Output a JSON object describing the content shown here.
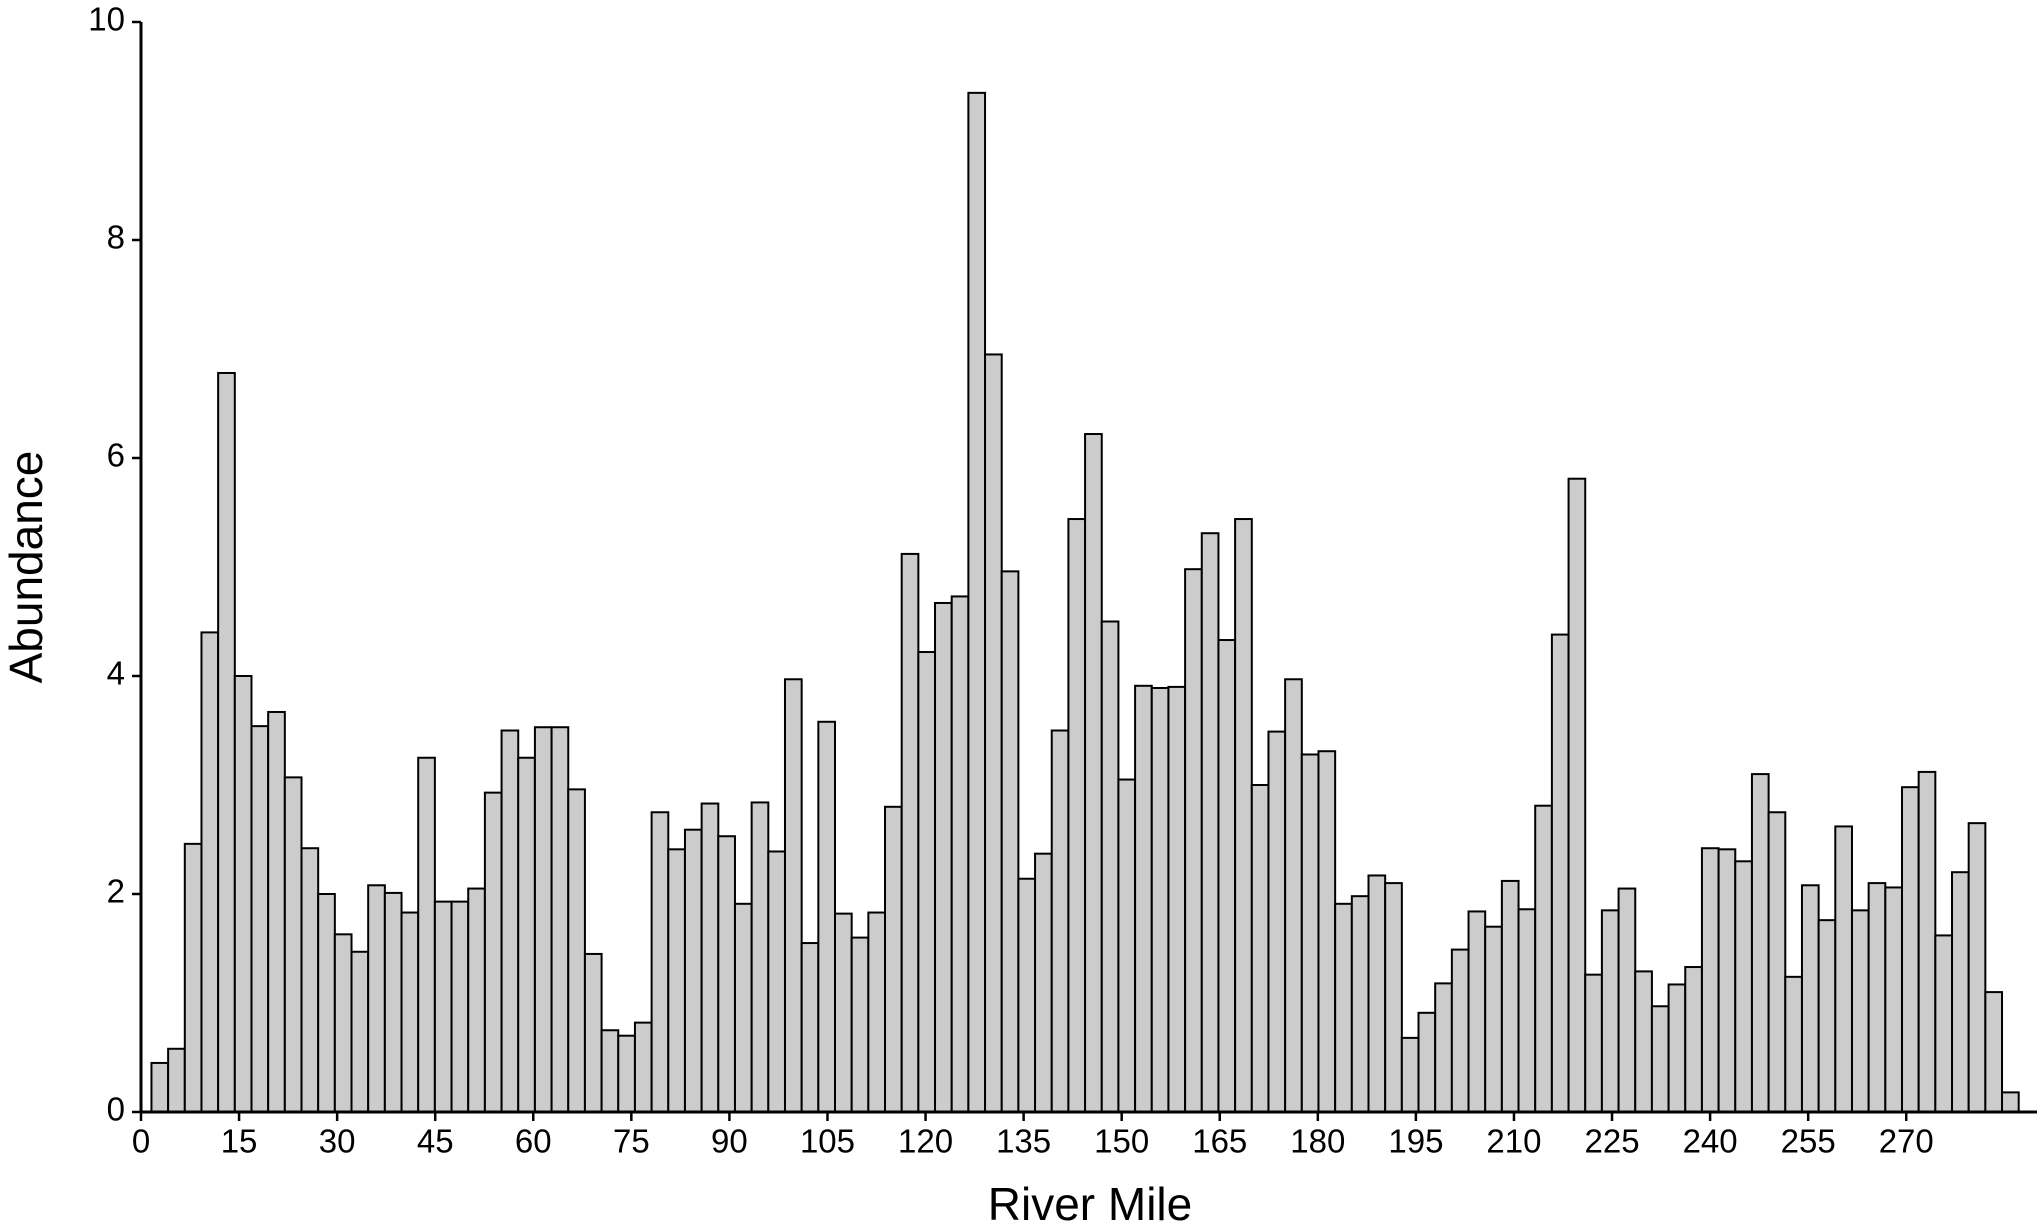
{
  "chart_data": {
    "type": "histogram",
    "xlabel": "River Mile",
    "ylabel": "Abundance",
    "bins": [
      1.6,
      4.15,
      6.7,
      9.25,
      11.8,
      14.35,
      16.9,
      19.45,
      22.0,
      24.55,
      27.1,
      29.65,
      32.2,
      34.75,
      37.3,
      39.85,
      42.4,
      44.95,
      47.5,
      50.05,
      52.6,
      55.15,
      57.7,
      60.25,
      62.8,
      65.35,
      67.9,
      70.45,
      73.0,
      75.55,
      78.1,
      80.65,
      83.2,
      85.75,
      88.3,
      90.85,
      93.4,
      95.95,
      98.5,
      101.05,
      103.6,
      106.15,
      108.7,
      111.25,
      113.8,
      116.35,
      118.9,
      121.45,
      124.0,
      126.55,
      129.1,
      131.65,
      134.2,
      136.75,
      139.3,
      141.85,
      144.4,
      146.95,
      149.5,
      152.05,
      154.6,
      157.15,
      159.7,
      162.25,
      164.8,
      167.35,
      169.9,
      172.45,
      175.0,
      177.55,
      180.1,
      182.65,
      185.2,
      187.75,
      190.3,
      192.85,
      195.4,
      197.95,
      200.5,
      203.05,
      205.6,
      208.15,
      210.7,
      213.25,
      215.8,
      218.35,
      220.9,
      223.45,
      226.0,
      228.55,
      231.1,
      233.65,
      236.2,
      238.75,
      241.3,
      243.85,
      246.4,
      248.95,
      251.5,
      254.05,
      256.6,
      259.15,
      261.7,
      264.25,
      266.8,
      269.35,
      271.9,
      274.45,
      277.0,
      279.55,
      282.1,
      284.65,
      287.2
    ],
    "values": [
      0.45,
      0.58,
      2.46,
      4.4,
      6.78,
      4.0,
      3.54,
      3.67,
      3.07,
      2.42,
      2.0,
      1.63,
      1.47,
      2.08,
      2.01,
      1.83,
      3.25,
      1.93,
      1.93,
      2.05,
      2.93,
      3.5,
      3.25,
      3.53,
      3.53,
      2.96,
      1.45,
      0.75,
      0.7,
      0.82,
      2.75,
      2.41,
      2.59,
      2.83,
      2.53,
      1.91,
      2.84,
      2.39,
      3.97,
      1.55,
      3.58,
      1.82,
      1.6,
      1.83,
      2.8,
      5.12,
      4.22,
      4.67,
      4.73,
      9.35,
      6.95,
      4.96,
      2.14,
      2.37,
      3.5,
      5.44,
      6.22,
      4.5,
      3.05,
      3.91,
      3.89,
      3.9,
      4.98,
      5.31,
      4.33,
      5.44,
      3.0,
      3.49,
      3.97,
      3.28,
      3.31,
      1.91,
      1.98,
      2.17,
      2.1,
      0.68,
      0.91,
      1.18,
      1.49,
      1.84,
      1.7,
      2.12,
      1.86,
      2.81,
      4.38,
      5.81,
      1.26,
      1.85,
      2.05,
      1.29,
      0.97,
      1.17,
      1.33,
      2.42,
      2.41,
      2.3,
      3.1,
      2.75,
      1.24,
      2.08,
      1.76,
      2.62,
      1.85,
      2.1,
      2.06,
      2.98,
      3.12,
      1.62,
      2.2,
      2.65,
      1.1,
      0.18
    ],
    "color": "#cccccc",
    "xlim": [
      0,
      290
    ],
    "xticks": [
      0,
      15,
      30,
      45,
      60,
      75,
      90,
      105,
      120,
      135,
      150,
      165,
      180,
      195,
      210,
      225,
      240,
      255,
      270
    ],
    "ylim": [
      0,
      10
    ],
    "yticks": [
      0,
      2,
      4,
      6,
      8,
      10
    ],
    "grid": false
  }
}
